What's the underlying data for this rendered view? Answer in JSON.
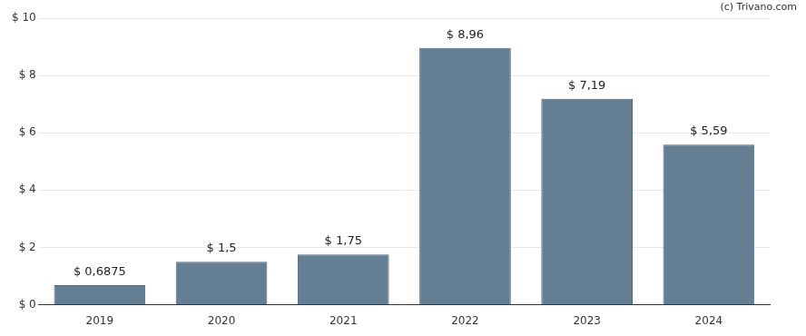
{
  "chart_data": {
    "type": "bar",
    "annotations": [
      "(c) Trivano.com"
    ],
    "categories": [
      "2019",
      "2020",
      "2021",
      "2022",
      "2023",
      "2024"
    ],
    "values": [
      0.6875,
      1.5,
      1.75,
      8.96,
      7.19,
      5.59
    ],
    "value_labels": [
      "$ 0,6875",
      "$ 1,5",
      "$ 1,75",
      "$ 8,96",
      "$ 7,19",
      "$ 5,59"
    ],
    "data_labels": true,
    "color": "#647f94",
    "ylim": [
      0,
      10
    ],
    "yticks": [
      {
        "value": 0,
        "label": "$ 0"
      },
      {
        "value": 2,
        "label": "$ 2"
      },
      {
        "value": 4,
        "label": "$ 4"
      },
      {
        "value": 6,
        "label": "$ 6"
      },
      {
        "value": 8,
        "label": "$ 8"
      },
      {
        "value": 10,
        "label": "$ 10"
      }
    ],
    "grid": true
  }
}
